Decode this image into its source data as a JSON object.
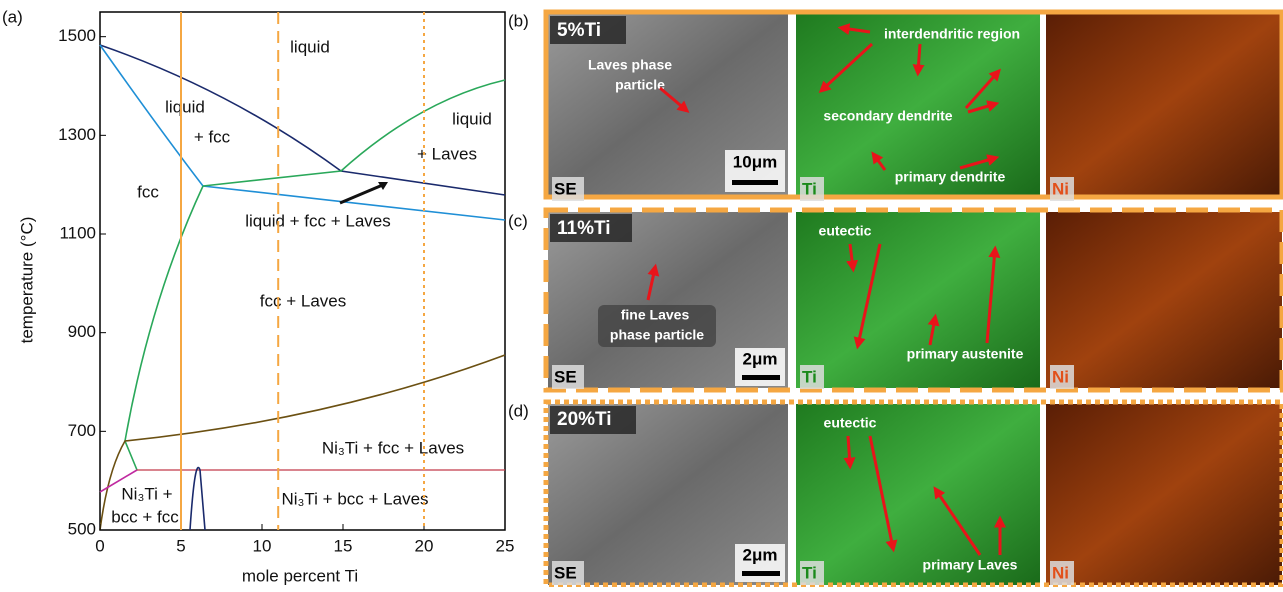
{
  "panel_a": {
    "label": "(a)",
    "xlabel": "mole percent Ti",
    "ylabel": "temperature (°C)",
    "xlim": [
      0,
      25
    ],
    "ylim": [
      500,
      1550
    ],
    "xticks": [
      0,
      5,
      10,
      15,
      20,
      25
    ],
    "yticks": [
      500,
      700,
      900,
      1100,
      1300,
      1500
    ],
    "compositions": [
      5,
      11,
      20
    ],
    "composition_color": "#f5a742",
    "regions": [
      "liquid",
      "liquid",
      "+ fcc",
      "liquid",
      "+ Laves",
      "fcc",
      "liquid + fcc + Laves",
      "fcc + Laves",
      "Ni₃Ti + fcc + Laves",
      "Ni₃Ti +",
      "bcc + fcc",
      "Ni₃Ti + bcc + Laves"
    ]
  },
  "panel_b": {
    "label": "(b)",
    "composition": "5%Ti",
    "scale_bar": "10μm",
    "channels": [
      "SE",
      "Ti",
      "Ni"
    ],
    "annotations": [
      "interdendritic region",
      "Laves phase",
      "particle",
      "secondary dendrite",
      "primary dendrite"
    ]
  },
  "panel_c": {
    "label": "(c)",
    "composition": "11%Ti",
    "scale_bar": "2μm",
    "channels": [
      "SE",
      "Ti",
      "Ni"
    ],
    "annotations": [
      "eutectic",
      "fine Laves",
      "phase particle",
      "primary austenite"
    ]
  },
  "panel_d": {
    "label": "(d)",
    "composition": "20%Ti",
    "scale_bar": "2μm",
    "channels": [
      "SE",
      "Ti",
      "Ni"
    ],
    "annotations": [
      "eutectic",
      "primary Laves"
    ]
  }
}
